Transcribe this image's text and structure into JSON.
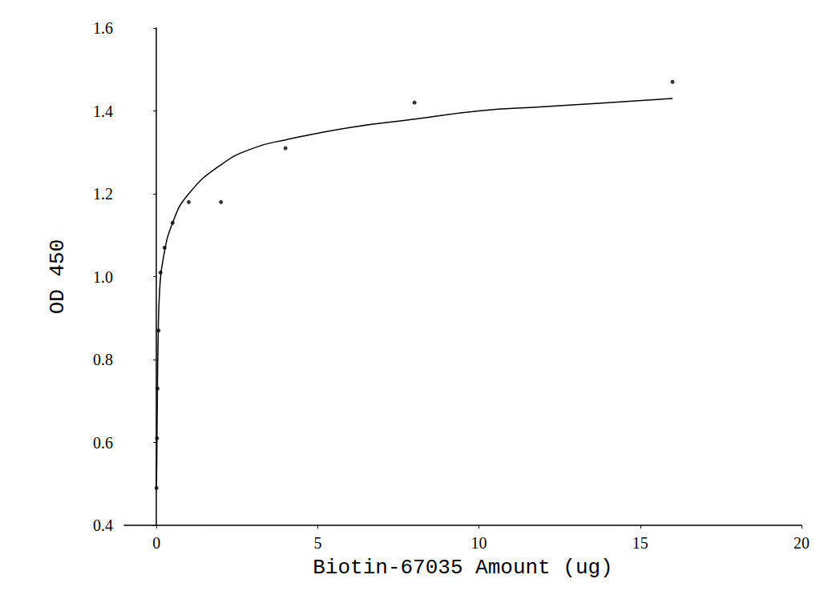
{
  "chart_data": {
    "type": "scatter",
    "x_label": "Biotin-67035 Amount (ug)",
    "y_label": "OD 450",
    "xlim": [
      -1,
      20
    ],
    "xticks": [
      0,
      5,
      10,
      15,
      20
    ],
    "ylim": [
      0.4,
      1.6
    ],
    "yticks": [
      0.4,
      0.6,
      0.8,
      {
        "value": 1,
        "label": "1.0"
      },
      1.2,
      1.4,
      1.6
    ],
    "grid": false,
    "series": [
      {
        "type": "scatter",
        "color": "#000000",
        "marker": "circle",
        "x": [
          0,
          0.015625,
          0.03125,
          0.0625,
          0.125,
          0.25,
          0.5,
          1,
          2,
          4,
          8,
          16
        ],
        "values": [
          0.49,
          0.61,
          0.73,
          0.87,
          1.01,
          1.07,
          1.13,
          1.18,
          1.18,
          1.31,
          1.42,
          1.47
        ]
      },
      {
        "type": "line",
        "color": "#000000",
        "line_style": "solid",
        "x": [
          0,
          0.02,
          0.05,
          0.1,
          0.2,
          0.5,
          1,
          2,
          3,
          4,
          6,
          8,
          10,
          12,
          14,
          16
        ],
        "values": [
          0.49,
          0.65,
          0.85,
          0.97,
          1.04,
          1.13,
          1.2,
          1.27,
          1.31,
          1.33,
          1.36,
          1.38,
          1.4,
          1.41,
          1.42,
          1.43
        ]
      }
    ]
  }
}
